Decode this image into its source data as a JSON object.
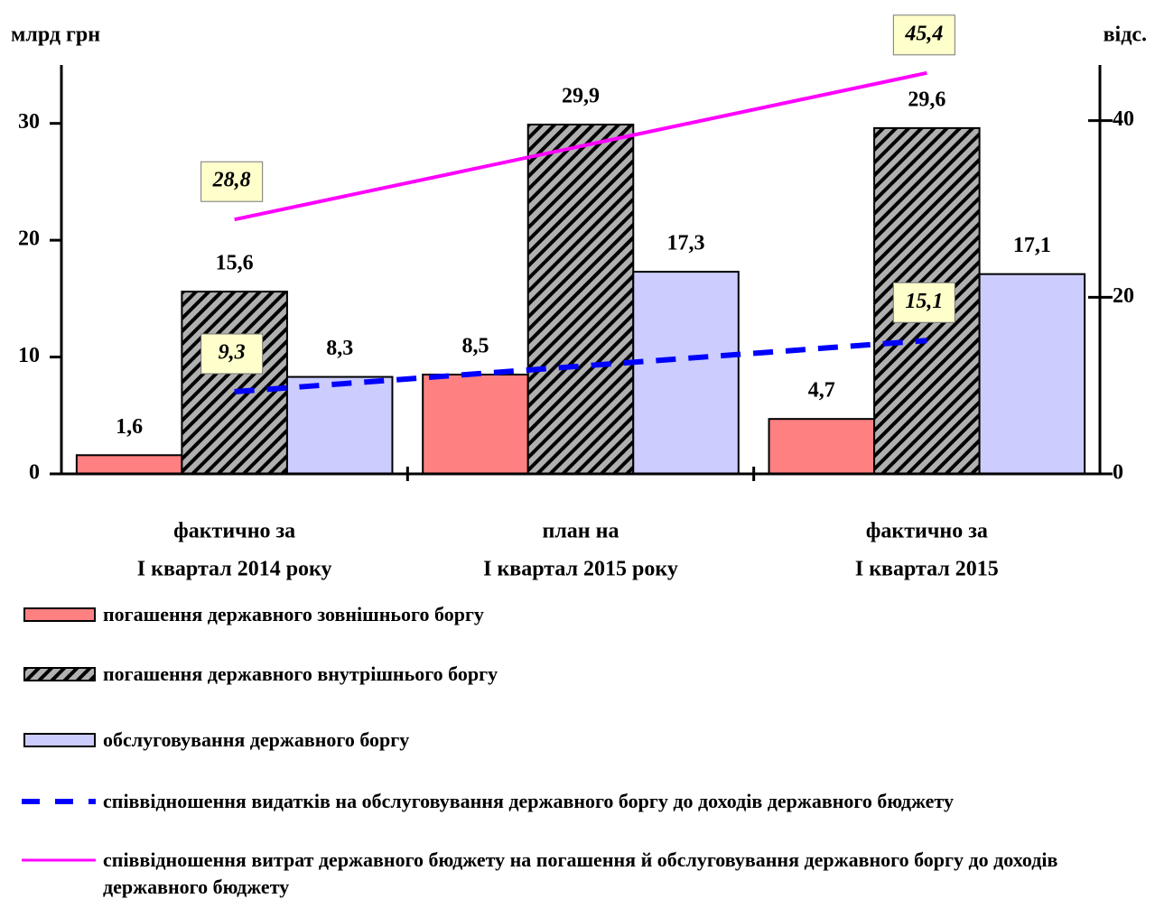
{
  "chart_data": {
    "type": "bar",
    "y_label": "млрд грн",
    "y2_label": "відс.",
    "categories": [
      [
        "фактично за",
        "І квартал 2014 року"
      ],
      [
        "план на",
        "І квартал 2015 року"
      ],
      [
        "фактично за",
        "І квартал 2015"
      ]
    ],
    "ylim": [
      0,
      35
    ],
    "yticks": [
      0,
      10,
      20,
      30
    ],
    "y2lim": [
      0,
      46.3
    ],
    "y2ticks": [
      0,
      20,
      40
    ],
    "series": [
      {
        "name": "погашення державного зовнішнього боргу",
        "color": "#ff8080",
        "values": [
          1.6,
          8.5,
          4.7
        ],
        "value_labels": [
          "1,6",
          "8,5",
          "4,7"
        ]
      },
      {
        "name": "погашення державного внутрішнього боргу",
        "color": "#a6a6a6",
        "pattern": "hatch",
        "values": [
          15.6,
          29.9,
          29.6
        ],
        "value_labels": [
          "15,6",
          "29,9",
          "29,6"
        ]
      },
      {
        "name": "обслуговування державного боргу",
        "color": "#ccccff",
        "values": [
          8.3,
          17.3,
          17.1
        ],
        "value_labels": [
          "8,3",
          "17,3",
          "17,1"
        ]
      },
      {
        "name": "співвідношення видатків на обслуговування державного боргу до доходів державного бюджету",
        "type": "line",
        "axis": "y2",
        "color": "#0000ff",
        "dash": true,
        "values": [
          9.3,
          12.2,
          15.1
        ],
        "value_labels": [
          "9,3",
          null,
          "15,1"
        ]
      },
      {
        "name": "співвідношення витрат державного бюджету на погашення й обслуговування державного боргу до доходів державного бюджету",
        "type": "line",
        "axis": "y2",
        "color": "#ff00ff",
        "values": [
          28.8,
          37.1,
          45.4
        ],
        "value_labels": [
          "28,8",
          null,
          "45,4"
        ]
      }
    ]
  }
}
